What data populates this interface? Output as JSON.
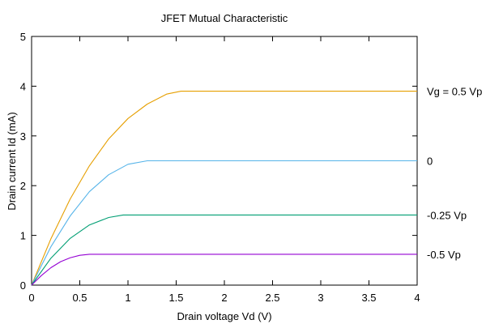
{
  "chart_data": {
    "type": "line",
    "title": "JFET Mutual Characteristic",
    "xlabel": "Drain voltage Vd (V)",
    "ylabel": "Drain current Id (mA)",
    "xlim": [
      0,
      4
    ],
    "ylim": [
      0,
      5
    ],
    "xticks": [
      "0",
      "0.5",
      "1",
      "1.5",
      "2",
      "2.5",
      "3",
      "3.5",
      "4"
    ],
    "yticks": [
      "0",
      "1",
      "2",
      "3",
      "4",
      "5"
    ],
    "grid": false,
    "legend": "right-edge labels",
    "series": [
      {
        "name": "Vg = 0.5 Vp",
        "color": "#e69f00",
        "x": [
          0,
          0.2,
          0.4,
          0.6,
          0.8,
          1.0,
          1.2,
          1.4,
          1.55,
          4
        ],
        "y": [
          0,
          0.93,
          1.73,
          2.4,
          2.94,
          3.35,
          3.64,
          3.84,
          3.9,
          3.9
        ]
      },
      {
        "name": "0",
        "color": "#56b4e9",
        "x": [
          0,
          0.2,
          0.4,
          0.6,
          0.8,
          1.0,
          1.2,
          4
        ],
        "y": [
          0,
          0.77,
          1.39,
          1.88,
          2.22,
          2.43,
          2.5,
          2.5
        ]
      },
      {
        "name": "-0.25 Vp",
        "color": "#009e73",
        "x": [
          0,
          0.2,
          0.4,
          0.6,
          0.8,
          0.95,
          4
        ],
        "y": [
          0,
          0.54,
          0.94,
          1.21,
          1.36,
          1.41,
          1.41
        ]
      },
      {
        "name": "-0.5 Vp",
        "color": "#9400d3",
        "x": [
          0,
          0.1,
          0.2,
          0.3,
          0.4,
          0.5,
          0.6,
          4
        ],
        "y": [
          0,
          0.19,
          0.35,
          0.47,
          0.55,
          0.6,
          0.62,
          0.62
        ]
      }
    ]
  }
}
